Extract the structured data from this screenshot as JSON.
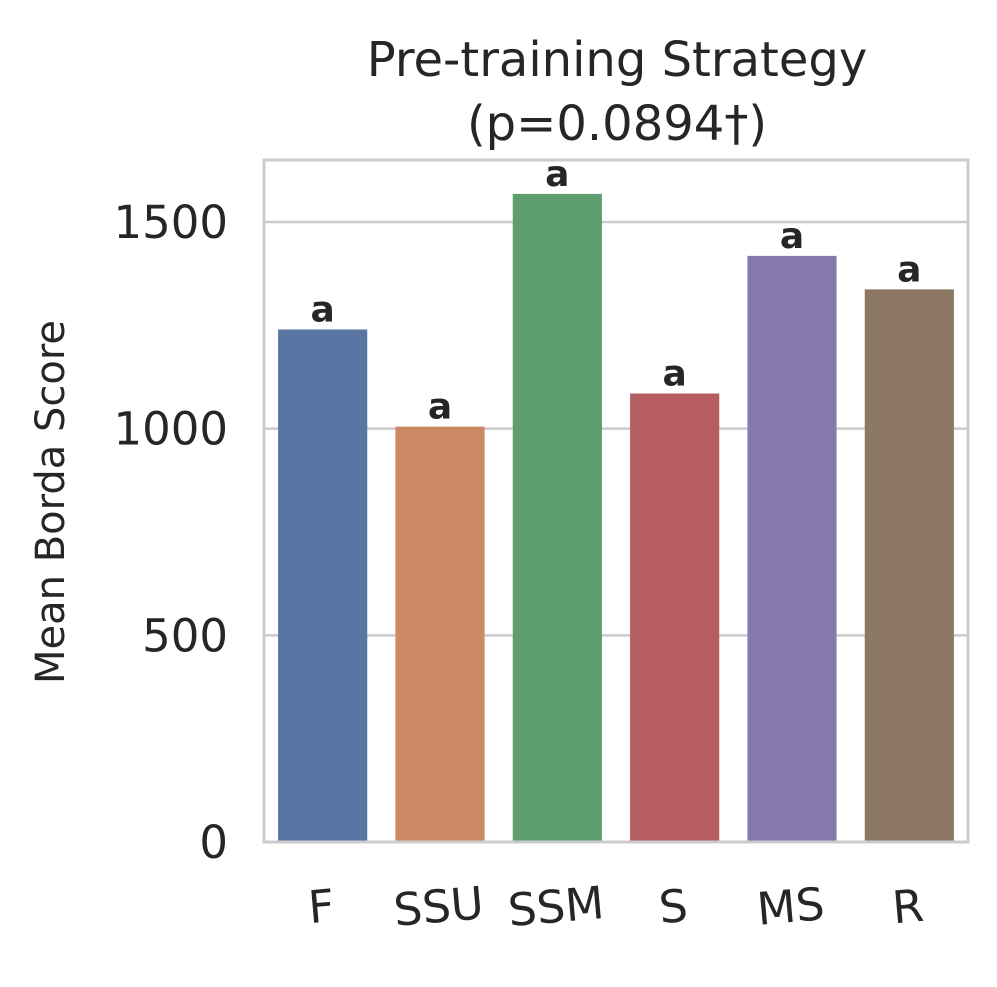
{
  "chart_data": {
    "type": "bar",
    "title_line1": "Pre-training Strategy",
    "title_line2": "(p=0.0894†)",
    "xlabel": "",
    "ylabel": "Mean Borda Score",
    "categories": [
      "F",
      "SSU",
      "SSM",
      "S",
      "MS",
      "R"
    ],
    "values": [
      1240,
      1005,
      1568,
      1085,
      1418,
      1337
    ],
    "letters": [
      "a",
      "a",
      "a",
      "a",
      "a",
      "a"
    ],
    "colors": [
      "#5975a4",
      "#cc8963",
      "#5f9e6e",
      "#b55d60",
      "#857aab",
      "#8d7866"
    ],
    "ylim": [
      0,
      1650
    ],
    "yticks": [
      0,
      500,
      1000,
      1500
    ],
    "ytick_labels": [
      "0",
      "500",
      "1000",
      "1500"
    ],
    "grid": true,
    "grid_color": "#cccccc",
    "spine_color": "#cccccc",
    "text_color": "#262626"
  }
}
